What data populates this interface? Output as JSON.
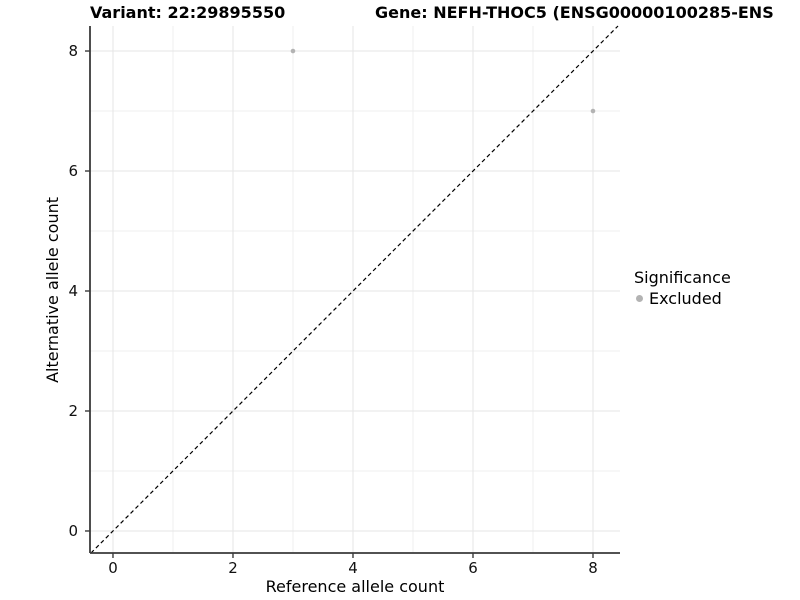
{
  "chart_data": {
    "type": "scatter",
    "titles": {
      "left": "Variant: 22:29895550",
      "right": "Gene: NEFH-THOC5 (ENSG00000100285-ENS"
    },
    "xlabel": "Reference allele count",
    "ylabel": "Alternative allele count",
    "xticks": [
      0,
      2,
      4,
      6,
      8
    ],
    "yticks": [
      0,
      2,
      4,
      6,
      8
    ],
    "minor_xticks": [
      1,
      3,
      5,
      7
    ],
    "minor_yticks": [
      1,
      3,
      5,
      7
    ],
    "xlim": [
      -0.383,
      8.45
    ],
    "ylim": [
      -0.367,
      8.417
    ],
    "grid": {
      "major": true,
      "minor": true
    },
    "identity_line": {
      "style": "dashed",
      "slope": 1,
      "intercept": 0,
      "color": "#000000"
    },
    "series": [
      {
        "name": "Excluded",
        "color": "#b3b3b3",
        "points": [
          {
            "x": 3,
            "y": 8
          },
          {
            "x": 8,
            "y": 7
          }
        ]
      }
    ],
    "legend": {
      "title": "Significance",
      "position": "right",
      "items": [
        {
          "label": "Excluded",
          "color": "#b3b3b3"
        }
      ]
    }
  },
  "colors": {
    "background": "#ffffff",
    "grid_major": "#e5e5e5",
    "grid_minor": "#efefef",
    "axis_line": "#3a3a3a",
    "tick_mark": "#3a3a3a",
    "text": "#000000",
    "point": "#b3b3b3"
  }
}
